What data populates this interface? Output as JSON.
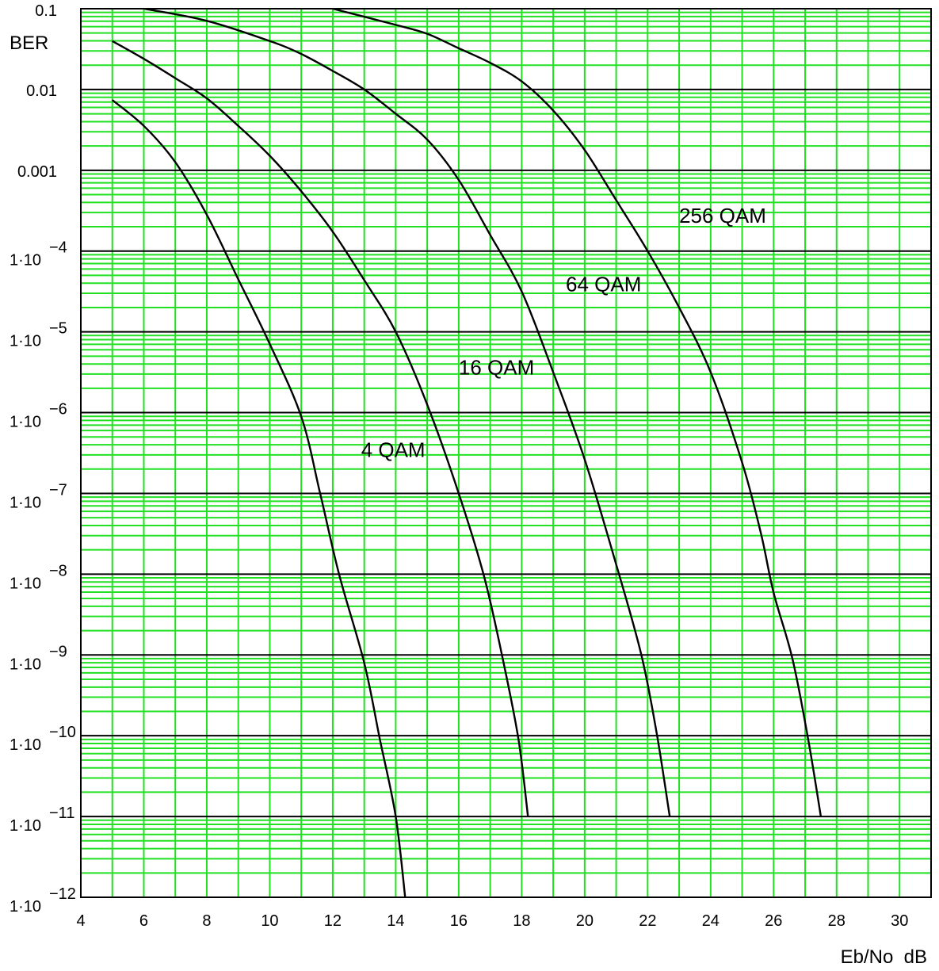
{
  "chart_data": {
    "type": "line",
    "ylabel": "BER",
    "xlabel": "Eb/No  dB",
    "y_scale": "log",
    "xlim": [
      4,
      31
    ],
    "ylim_log10": [
      -12,
      -1
    ],
    "grid": true,
    "x_ticks": [
      "4",
      "6",
      "8",
      "10",
      "12",
      "14",
      "16",
      "18",
      "20",
      "22",
      "24",
      "26",
      "28",
      "30"
    ],
    "x_tick_values": [
      4,
      6,
      8,
      10,
      12,
      14,
      16,
      18,
      20,
      22,
      24,
      26,
      28,
      30
    ],
    "y_ticks": [
      {
        "value_log10": -1,
        "label": "0.1",
        "sup": ""
      },
      {
        "value_log10": -2,
        "label": "0.01",
        "sup": ""
      },
      {
        "value_log10": -3,
        "label": "0.001",
        "sup": ""
      },
      {
        "value_log10": -4,
        "label": "1·10",
        "sup": "−4"
      },
      {
        "value_log10": -5,
        "label": "1·10",
        "sup": "−5"
      },
      {
        "value_log10": -6,
        "label": "1·10",
        "sup": "−6"
      },
      {
        "value_log10": -7,
        "label": "1·10",
        "sup": "−7"
      },
      {
        "value_log10": -8,
        "label": "1·10",
        "sup": "−8"
      },
      {
        "value_log10": -9,
        "label": "1·10",
        "sup": "−9"
      },
      {
        "value_log10": -10,
        "label": "1·10",
        "sup": "−10"
      },
      {
        "value_log10": -11,
        "label": "1·10",
        "sup": "−11"
      },
      {
        "value_log10": -12,
        "label": "1·10",
        "sup": "−12"
      }
    ],
    "series": [
      {
        "name": "4 QAM",
        "x": [
          5.0,
          6.0,
          7.0,
          8.0,
          9.0,
          10.0,
          11.0,
          11.6,
          12.2,
          13.0,
          13.5,
          14.0,
          14.3
        ],
        "log10_ber": [
          -2.13,
          -2.45,
          -2.9,
          -3.55,
          -4.35,
          -5.15,
          -6.05,
          -7.0,
          -8.0,
          -9.1,
          -10.05,
          -11.0,
          -12.0
        ]
      },
      {
        "name": "16 QAM",
        "x": [
          5.0,
          6.0,
          7.0,
          8.0,
          9.0,
          10.0,
          11.0,
          12.0,
          13.0,
          14.0,
          15.0,
          16.0,
          16.8,
          17.4,
          17.9,
          18.2
        ],
        "log10_ber": [
          -1.4,
          -1.62,
          -1.86,
          -2.11,
          -2.45,
          -2.82,
          -3.26,
          -3.76,
          -4.36,
          -5.0,
          -5.9,
          -7.0,
          -8.02,
          -9.05,
          -10.05,
          -11.0
        ]
      },
      {
        "name": "64 QAM",
        "x": [
          6.0,
          8.0,
          10.0,
          11.0,
          12.0,
          13.0,
          14.0,
          15.0,
          16.0,
          17.0,
          18.0,
          19.0,
          20.0,
          21.0,
          21.8,
          22.3,
          22.7
        ],
        "log10_ber": [
          -1.0,
          -1.15,
          -1.4,
          -1.56,
          -1.77,
          -2.0,
          -2.3,
          -2.62,
          -3.12,
          -3.8,
          -4.5,
          -5.5,
          -6.58,
          -7.88,
          -9.0,
          -10.0,
          -11.0
        ]
      },
      {
        "name": "256 QAM",
        "x": [
          12.0,
          14.0,
          15.0,
          16.0,
          17.0,
          18.0,
          19.0,
          20.0,
          21.0,
          22.0,
          23.0,
          24.0,
          25.0,
          25.6,
          26.0,
          26.6,
          27.1,
          27.5
        ],
        "log10_ber": [
          -1.0,
          -1.2,
          -1.31,
          -1.49,
          -1.67,
          -1.9,
          -2.26,
          -2.75,
          -3.37,
          -4.0,
          -4.7,
          -5.5,
          -6.62,
          -7.5,
          -8.23,
          -9.05,
          -10.05,
          -11.0
        ]
      }
    ],
    "annotations": [
      {
        "text": "4 QAM",
        "x": 12.9,
        "log10_ber": -6.55
      },
      {
        "text": "16 QAM",
        "x": 16.0,
        "log10_ber": -5.53
      },
      {
        "text": "64 QAM",
        "x": 19.4,
        "log10_ber": -4.5
      },
      {
        "text": "256 QAM",
        "x": 23.0,
        "log10_ber": -3.65
      }
    ]
  }
}
